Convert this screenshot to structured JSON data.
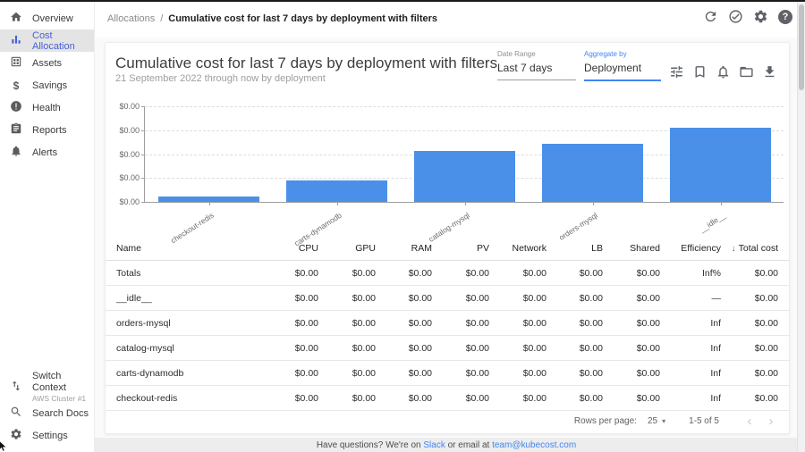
{
  "topbar": {
    "breadcrumb": {
      "section": "Allocations",
      "separator": "/",
      "title": "Cumulative cost for last 7 days by deployment with filters"
    }
  },
  "icon_glyphs": {
    "help": "?",
    "savings": "$",
    "dropdown_caret": "▾",
    "chevron_left": "‹",
    "chevron_right": "›"
  },
  "sidebar": {
    "items": [
      {
        "label": "Overview"
      },
      {
        "label": "Cost Allocation",
        "active": true
      },
      {
        "label": "Assets"
      },
      {
        "label": "Savings"
      },
      {
        "label": "Health"
      },
      {
        "label": "Reports"
      },
      {
        "label": "Alerts"
      }
    ],
    "footer": {
      "switch_context": {
        "label": "Switch Context",
        "sublabel": "AWS Cluster #1"
      },
      "search_docs": {
        "label": "Search Docs"
      },
      "settings": {
        "label": "Settings"
      }
    }
  },
  "report": {
    "title": "Cumulative cost for last 7 days by deployment with filters",
    "subtitle": "21 September 2022 through now by deployment",
    "date_range": {
      "label": "Date Range",
      "value": "Last 7 days"
    },
    "aggregate_by": {
      "label": "Aggregate by",
      "value": "Deployment"
    }
  },
  "chart_data": {
    "type": "bar",
    "categories": [
      "checkout-redis",
      "carts-dynamodb",
      "catalog-mysql",
      "orders-mysql",
      "__idle__"
    ],
    "values": [
      0,
      0,
      0,
      0,
      0
    ],
    "value_labels": [
      "$0.00",
      "$0.00",
      "$0.00",
      "$0.00",
      "$0.00"
    ],
    "relative_heights": [
      0.06,
      0.22,
      0.53,
      0.61,
      0.78
    ],
    "y_ticks": [
      "$0.00",
      "$0.00",
      "$0.00",
      "$0.00",
      "$0.00"
    ],
    "bar_color": "#4a90e8",
    "grid": "dashed-horizontal",
    "legend": "none",
    "xlabel": "",
    "ylabel": ""
  },
  "table": {
    "sort_icon": "↓",
    "columns": [
      {
        "label": "Name",
        "align": "left"
      },
      {
        "label": "CPU"
      },
      {
        "label": "GPU"
      },
      {
        "label": "RAM"
      },
      {
        "label": "PV"
      },
      {
        "label": "Network"
      },
      {
        "label": "LB"
      },
      {
        "label": "Shared"
      },
      {
        "label": "Efficiency"
      },
      {
        "label": "Total cost",
        "sorted": "desc"
      }
    ],
    "rows": [
      [
        "Totals",
        "$0.00",
        "$0.00",
        "$0.00",
        "$0.00",
        "$0.00",
        "$0.00",
        "$0.00",
        "Inf%",
        "$0.00"
      ],
      [
        "__idle__",
        "$0.00",
        "$0.00",
        "$0.00",
        "$0.00",
        "$0.00",
        "$0.00",
        "$0.00",
        "—",
        "$0.00"
      ],
      [
        "orders-mysql",
        "$0.00",
        "$0.00",
        "$0.00",
        "$0.00",
        "$0.00",
        "$0.00",
        "$0.00",
        "Inf",
        "$0.00"
      ],
      [
        "catalog-mysql",
        "$0.00",
        "$0.00",
        "$0.00",
        "$0.00",
        "$0.00",
        "$0.00",
        "$0.00",
        "Inf",
        "$0.00"
      ],
      [
        "carts-dynamodb",
        "$0.00",
        "$0.00",
        "$0.00",
        "$0.00",
        "$0.00",
        "$0.00",
        "$0.00",
        "Inf",
        "$0.00"
      ],
      [
        "checkout-redis",
        "$0.00",
        "$0.00",
        "$0.00",
        "$0.00",
        "$0.00",
        "$0.00",
        "$0.00",
        "Inf",
        "$0.00"
      ]
    ]
  },
  "pagination": {
    "rows_per_page_label": "Rows per page:",
    "rows_per_page_value": "25",
    "range_label": "1-5 of 5"
  },
  "banner": {
    "prefix": "Have questions? We're on ",
    "slack_link": "Slack",
    "middle": " or email at ",
    "email_link": "team@kubecost.com"
  }
}
